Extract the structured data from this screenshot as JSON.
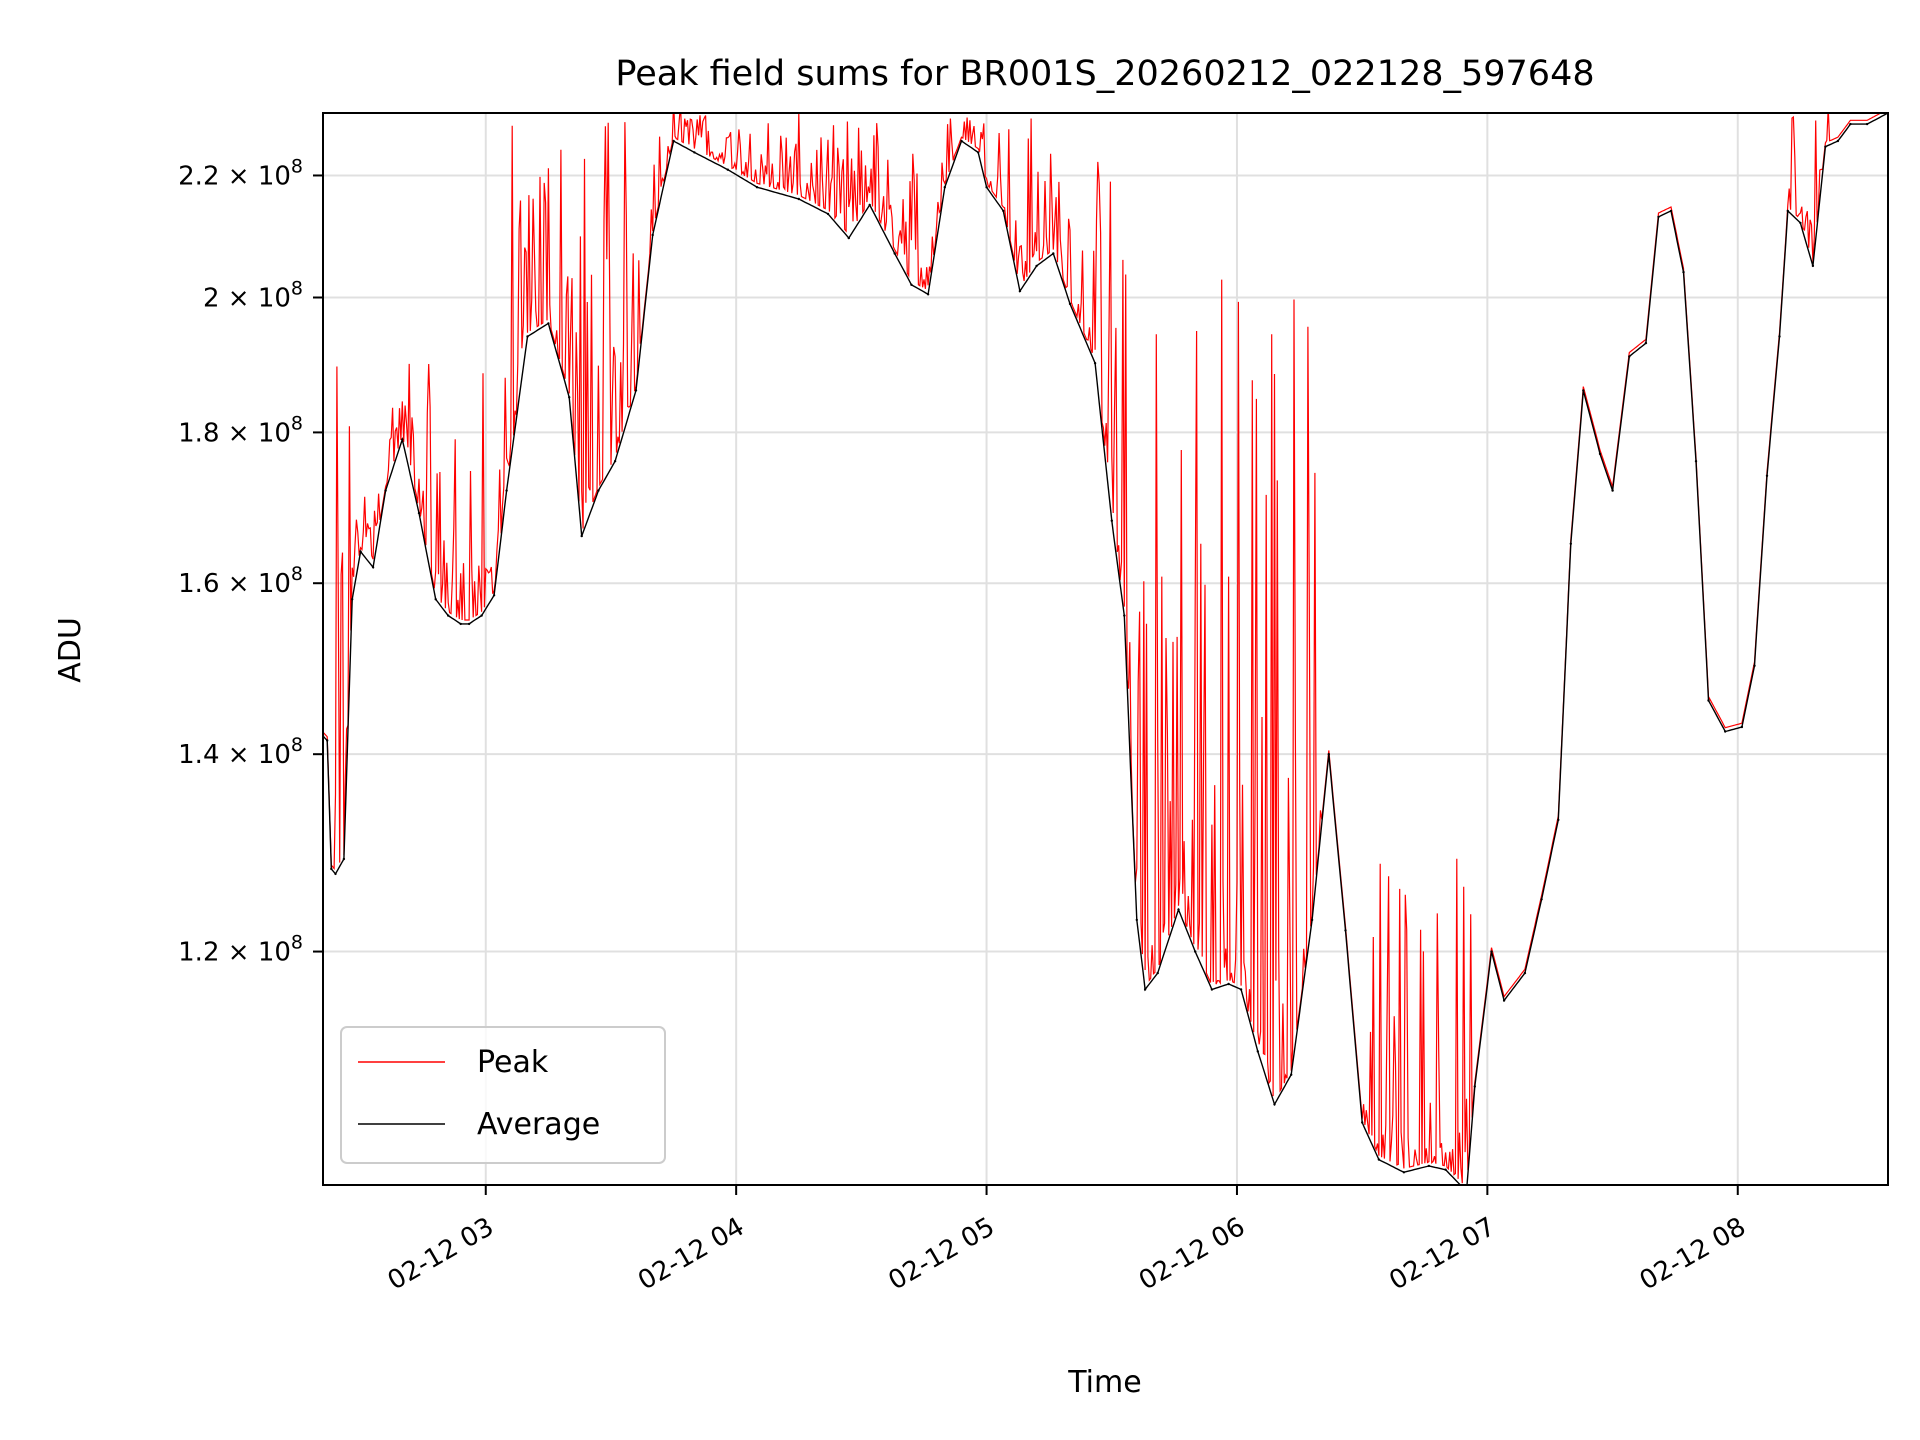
{
  "chart_data": {
    "type": "line",
    "title": "Peak field sums for BR001S_20260212_022128_597648",
    "xlabel": "Time",
    "ylabel": "ADU",
    "y_scale": "log",
    "xlim": [
      "2026-02-12 02:21",
      "2026-02-12 08:36"
    ],
    "ylim": [
      100000000,
      231000000
    ],
    "grid": true,
    "legend_position": "lower-left",
    "x_tick_labels": [
      "02-12 03",
      "02-12 04",
      "02-12 05",
      "02-12 06",
      "02-12 07",
      "02-12 08"
    ],
    "x_tick_times": [
      "2026-02-12 03:00",
      "2026-02-12 04:00",
      "2026-02-12 05:00",
      "2026-02-12 06:00",
      "2026-02-12 07:00",
      "2026-02-12 08:00"
    ],
    "y_ticks": [
      {
        "value": 120000000,
        "mantissa": "1.2",
        "exp": "8"
      },
      {
        "value": 140000000,
        "mantissa": "1.4",
        "exp": "8"
      },
      {
        "value": 160000000,
        "mantissa": "1.6",
        "exp": "8"
      },
      {
        "value": 180000000,
        "mantissa": "1.8",
        "exp": "8"
      },
      {
        "value": 200000000,
        "mantissa": "2",
        "exp": "8"
      },
      {
        "value": 220000000,
        "mantissa": "2.2",
        "exp": "8"
      }
    ],
    "series": [
      {
        "name": "Average",
        "color": "#000000",
        "x": [
          "2026-02-12 02:21",
          "2026-02-12 02:22",
          "2026-02-12 02:23",
          "2026-02-12 02:24",
          "2026-02-12 02:26",
          "2026-02-12 02:28",
          "2026-02-12 02:30",
          "2026-02-12 02:33",
          "2026-02-12 02:36",
          "2026-02-12 02:40",
          "2026-02-12 02:44",
          "2026-02-12 02:48",
          "2026-02-12 02:51",
          "2026-02-12 02:54",
          "2026-02-12 02:56",
          "2026-02-12 02:59",
          "2026-02-12 03:02",
          "2026-02-12 03:05",
          "2026-02-12 03:10",
          "2026-02-12 03:15",
          "2026-02-12 03:20",
          "2026-02-12 03:23",
          "2026-02-12 03:27",
          "2026-02-12 03:31",
          "2026-02-12 03:36",
          "2026-02-12 03:40",
          "2026-02-12 03:45",
          "2026-02-12 03:50",
          "2026-02-12 03:58",
          "2026-02-12 04:05",
          "2026-02-12 04:15",
          "2026-02-12 04:22",
          "2026-02-12 04:27",
          "2026-02-12 04:32",
          "2026-02-12 04:38",
          "2026-02-12 04:42",
          "2026-02-12 04:46",
          "2026-02-12 04:50",
          "2026-02-12 04:54",
          "2026-02-12 04:58",
          "2026-02-12 05:00",
          "2026-02-12 05:04",
          "2026-02-12 05:08",
          "2026-02-12 05:12",
          "2026-02-12 05:16",
          "2026-02-12 05:20",
          "2026-02-12 05:26",
          "2026-02-12 05:30",
          "2026-02-12 05:33",
          "2026-02-12 05:36",
          "2026-02-12 05:38",
          "2026-02-12 05:41",
          "2026-02-12 05:46",
          "2026-02-12 05:50",
          "2026-02-12 05:54",
          "2026-02-12 05:58",
          "2026-02-12 06:01",
          "2026-02-12 06:05",
          "2026-02-12 06:09",
          "2026-02-12 06:13",
          "2026-02-12 06:18",
          "2026-02-12 06:22",
          "2026-02-12 06:26",
          "2026-02-12 06:30",
          "2026-02-12 06:34",
          "2026-02-12 06:40",
          "2026-02-12 06:46",
          "2026-02-12 06:50",
          "2026-02-12 06:55",
          "2026-02-12 06:57",
          "2026-02-12 07:01",
          "2026-02-12 07:04",
          "2026-02-12 07:09",
          "2026-02-12 07:13",
          "2026-02-12 07:17",
          "2026-02-12 07:20",
          "2026-02-12 07:23",
          "2026-02-12 07:27",
          "2026-02-12 07:30",
          "2026-02-12 07:34",
          "2026-02-12 07:38",
          "2026-02-12 07:41",
          "2026-02-12 07:44",
          "2026-02-12 07:47",
          "2026-02-12 07:50",
          "2026-02-12 07:53",
          "2026-02-12 07:57",
          "2026-02-12 08:01",
          "2026-02-12 08:04",
          "2026-02-12 08:07",
          "2026-02-12 08:10",
          "2026-02-12 08:12",
          "2026-02-12 08:15",
          "2026-02-12 08:18",
          "2026-02-12 08:21",
          "2026-02-12 08:24",
          "2026-02-12 08:27",
          "2026-02-12 08:31",
          "2026-02-12 08:36"
        ],
        "y": [
          142000000,
          141500000,
          128000000,
          127500000,
          129000000,
          158000000,
          164000000,
          162000000,
          172000000,
          179000000,
          169000000,
          158000000,
          156000000,
          155000000,
          155000000,
          156000000,
          158500000,
          172000000,
          194000000,
          196000000,
          185000000,
          166000000,
          172000000,
          176000000,
          186000000,
          210000000,
          226000000,
          224000000,
          221000000,
          218000000,
          216000000,
          213500000,
          209500000,
          215000000,
          207000000,
          202000000,
          200500000,
          218000000,
          226000000,
          224000000,
          218000000,
          214000000,
          201000000,
          205000000,
          207000000,
          199000000,
          190000000,
          168000000,
          156000000,
          123000000,
          116500000,
          118000000,
          124000000,
          120000000,
          116500000,
          117000000,
          116500000,
          111000000,
          106500000,
          109000000,
          123000000,
          140000000,
          122000000,
          105000000,
          102000000,
          101000000,
          101500000,
          101200000,
          99500000,
          108000000,
          120000000,
          115500000,
          118000000,
          125000000,
          133000000,
          165000000,
          186000000,
          177000000,
          172000000,
          191000000,
          193000000,
          213000000,
          214000000,
          204000000,
          176000000,
          146000000,
          142500000,
          143000000,
          150000000,
          174000000,
          194000000,
          214000000,
          212000000,
          205000000,
          225000000,
          226000000,
          229000000,
          229000000,
          231000000
        ]
      },
      {
        "name": "Peak",
        "color": "#ff0000",
        "spike_regions": [
          {
            "from": "2026-02-12 02:24",
            "to": "2026-02-12 03:06",
            "max": 190000000
          },
          {
            "from": "2026-02-12 03:06",
            "to": "2026-02-12 03:46",
            "max": 231000000
          },
          {
            "from": "2026-02-12 03:46",
            "to": "2026-02-12 05:12",
            "max": 231000000
          },
          {
            "from": "2026-02-12 05:12",
            "to": "2026-02-12 05:30",
            "max": 225000000
          },
          {
            "from": "2026-02-12 05:30",
            "to": "2026-02-12 06:20",
            "max": 210000000
          },
          {
            "from": "2026-02-12 06:30",
            "to": "2026-02-12 06:56",
            "max": 130000000
          },
          {
            "from": "2026-02-12 08:12",
            "to": "2026-02-12 08:22",
            "max": 231000000
          }
        ]
      }
    ]
  }
}
